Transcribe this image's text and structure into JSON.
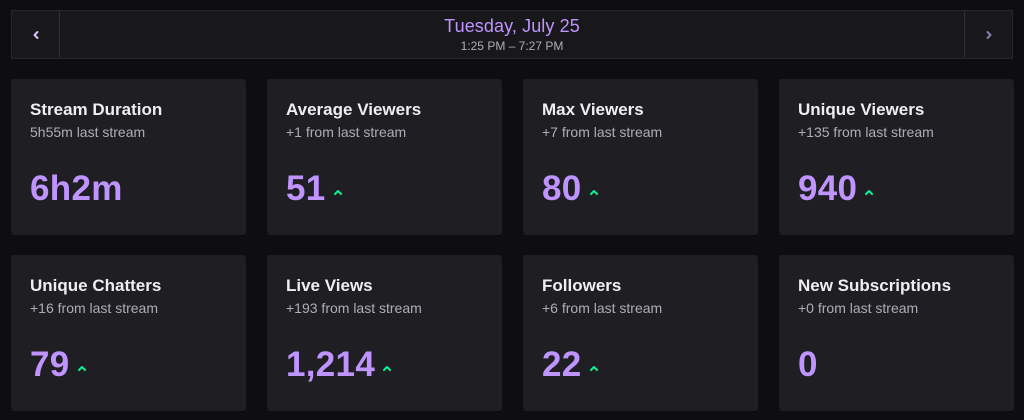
{
  "date_nav": {
    "title": "Tuesday, July 25",
    "time_range": "1:25 PM – 7:27 PM"
  },
  "colors": {
    "accent": "#bf94ff",
    "up_indicator": "#00f593",
    "card_bg": "#1f1f23",
    "page_bg": "#0e0e10"
  },
  "stats": [
    {
      "title": "Stream Duration",
      "comparison": "5h55m last stream",
      "value": "6h2m",
      "trend": "none"
    },
    {
      "title": "Average Viewers",
      "comparison": "+1 from last stream",
      "value": "51",
      "trend": "up"
    },
    {
      "title": "Max Viewers",
      "comparison": "+7 from last stream",
      "value": "80",
      "trend": "up"
    },
    {
      "title": "Unique Viewers",
      "comparison": "+135 from last stream",
      "value": "940",
      "trend": "up"
    },
    {
      "title": "Unique Chatters",
      "comparison": "+16 from last stream",
      "value": "79",
      "trend": "up"
    },
    {
      "title": "Live Views",
      "comparison": "+193 from last stream",
      "value": "1,214",
      "trend": "up"
    },
    {
      "title": "Followers",
      "comparison": "+6 from last stream",
      "value": "22",
      "trend": "up"
    },
    {
      "title": "New Subscriptions",
      "comparison": "+0 from last stream",
      "value": "0",
      "trend": "none"
    }
  ]
}
